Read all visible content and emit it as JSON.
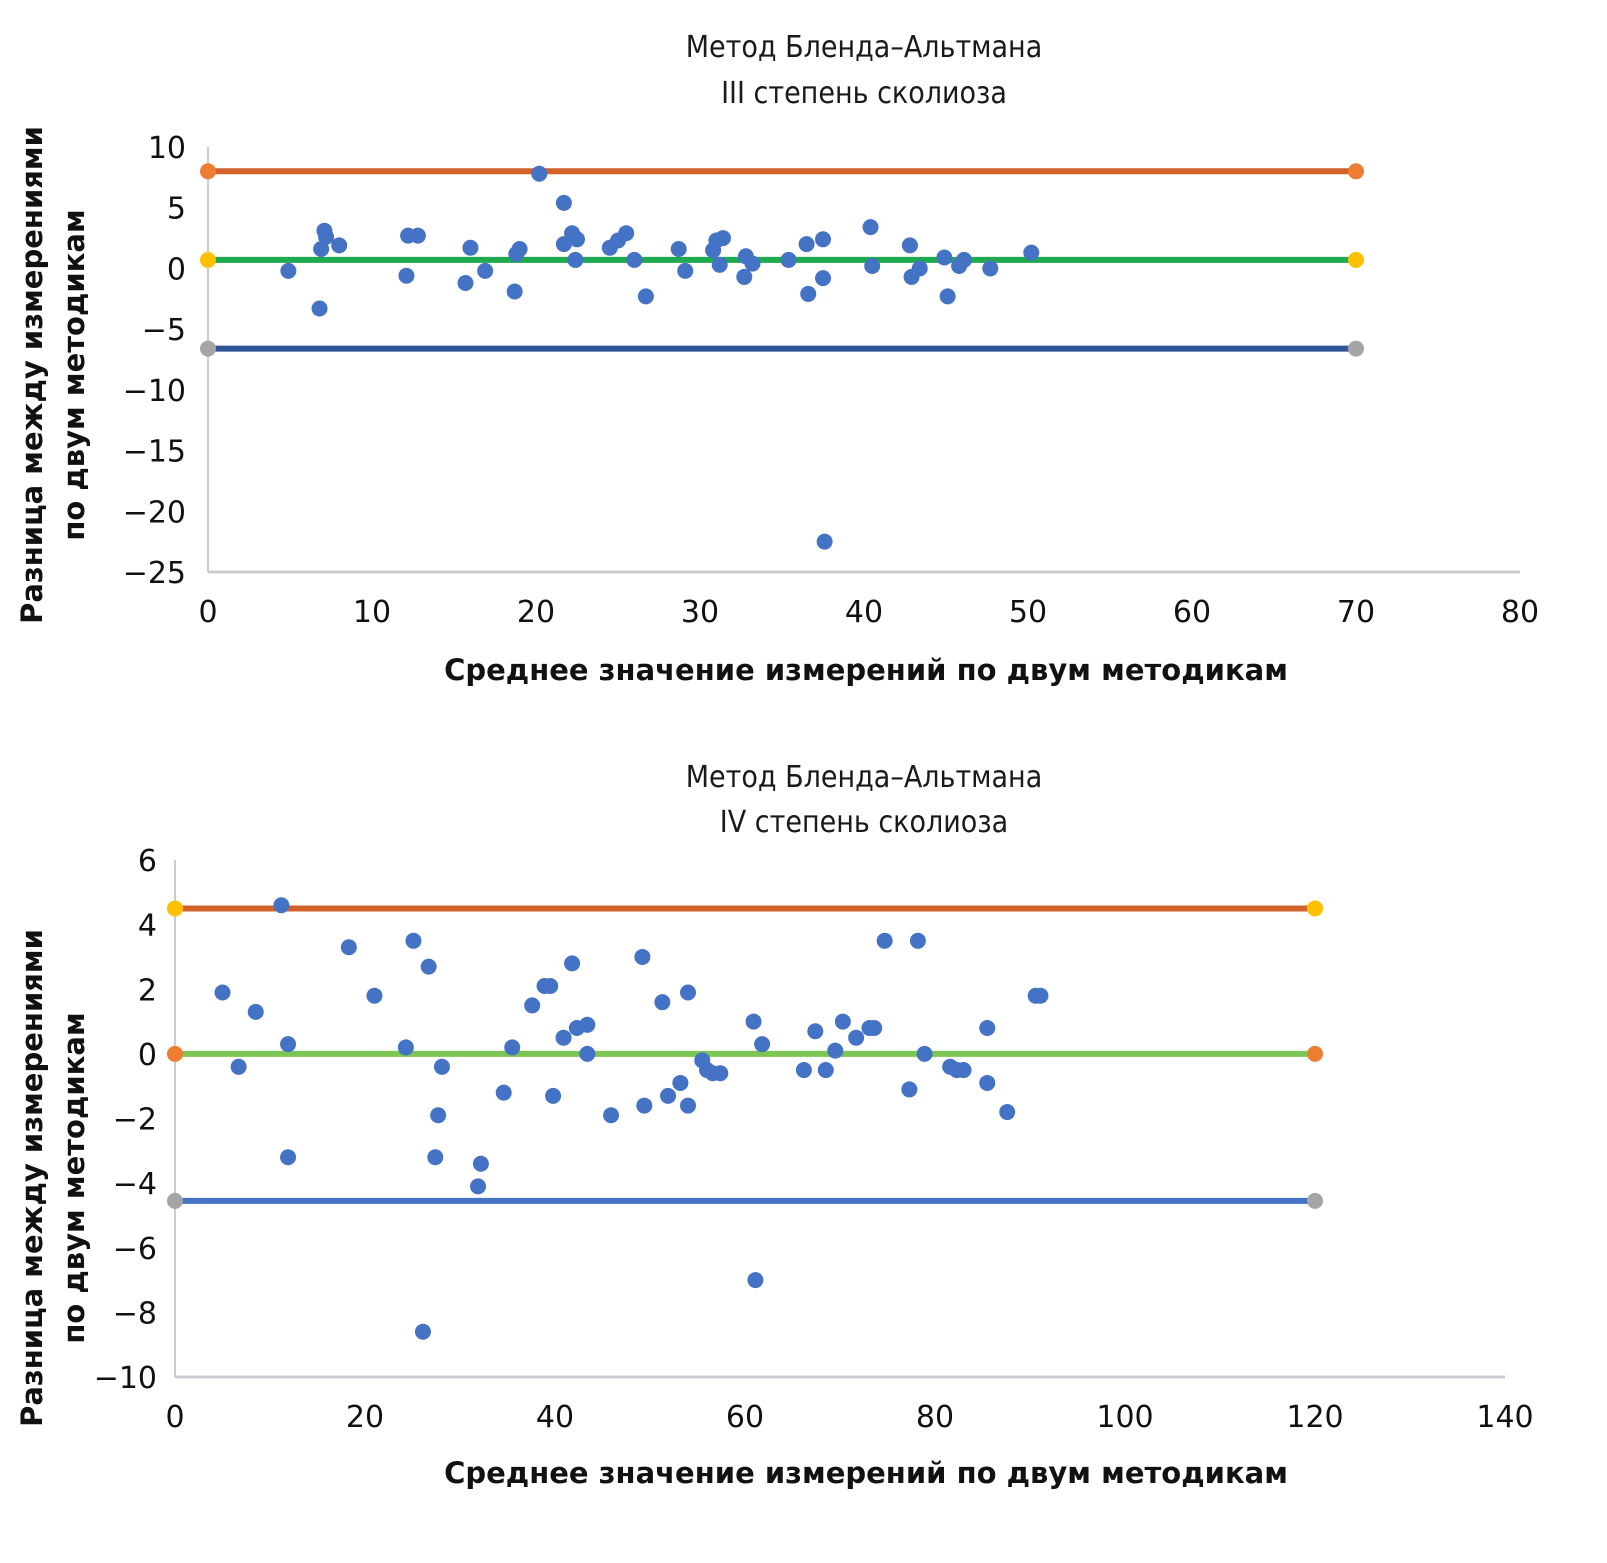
{
  "chart_data": [
    {
      "type": "scatter",
      "title": "Метод Бленда–Альтмана",
      "subtitle": "III степень сколиоза",
      "xlabel": "Среднее значение измерений по двум методикам",
      "ylabel_line1": "Разница между измерениями",
      "ylabel_line2": "по двум методикам",
      "xlim": [
        0,
        80
      ],
      "ylim": [
        -25,
        10
      ],
      "xticks": [
        0,
        10,
        20,
        30,
        40,
        50,
        60,
        70,
        80
      ],
      "yticks": [
        10,
        5,
        0,
        -5,
        -10,
        -15,
        -20,
        -25
      ],
      "ytick_labels": [
        "10",
        "5",
        "0",
        "−5",
        "−10",
        "−15",
        "−20",
        "−25"
      ],
      "grid": false,
      "reference_lines": [
        {
          "name": "upper limit",
          "y": 8.0,
          "x_range": [
            0,
            70
          ],
          "color": "#D2622A",
          "end_color": "#ED7D31"
        },
        {
          "name": "mean difference",
          "y": 0.7,
          "x_range": [
            0,
            70
          ],
          "color": "#1EAA4E",
          "end_color": "#FFC000"
        },
        {
          "name": "lower limit",
          "y": -6.6,
          "x_range": [
            0,
            70
          ],
          "color": "#2F5597",
          "end_color": "#A5A5A5"
        }
      ],
      "point_color": "#4472C4",
      "points": [
        [
          4.9,
          -0.2
        ],
        [
          6.8,
          -3.3
        ],
        [
          6.9,
          1.6
        ],
        [
          7.1,
          3.1
        ],
        [
          7.2,
          2.6
        ],
        [
          8.0,
          1.9
        ],
        [
          12.1,
          -0.6
        ],
        [
          12.2,
          2.7
        ],
        [
          12.8,
          2.7
        ],
        [
          15.7,
          -1.2
        ],
        [
          16.0,
          1.7
        ],
        [
          16.9,
          -0.2
        ],
        [
          18.7,
          -1.9
        ],
        [
          18.8,
          1.2
        ],
        [
          19.0,
          1.6
        ],
        [
          20.2,
          7.8
        ],
        [
          21.7,
          5.4
        ],
        [
          21.7,
          2.0
        ],
        [
          22.2,
          2.9
        ],
        [
          22.5,
          2.4
        ],
        [
          22.4,
          0.7
        ],
        [
          24.5,
          1.7
        ],
        [
          25.0,
          2.3
        ],
        [
          25.5,
          2.9
        ],
        [
          26.0,
          0.7
        ],
        [
          26.7,
          -2.3
        ],
        [
          28.7,
          1.6
        ],
        [
          29.1,
          -0.2
        ],
        [
          30.8,
          1.5
        ],
        [
          31.0,
          2.3
        ],
        [
          31.2,
          0.3
        ],
        [
          31.4,
          2.5
        ],
        [
          32.7,
          -0.7
        ],
        [
          32.8,
          1.0
        ],
        [
          33.2,
          0.4
        ],
        [
          35.4,
          0.7
        ],
        [
          36.6,
          -2.1
        ],
        [
          36.5,
          2.0
        ],
        [
          37.5,
          2.4
        ],
        [
          37.5,
          -0.8
        ],
        [
          37.6,
          -22.5
        ],
        [
          40.4,
          3.4
        ],
        [
          40.5,
          0.2
        ],
        [
          42.8,
          1.9
        ],
        [
          42.9,
          -0.7
        ],
        [
          43.4,
          -0.0
        ],
        [
          44.9,
          0.9
        ],
        [
          45.1,
          -2.3
        ],
        [
          45.8,
          0.2
        ],
        [
          46.1,
          0.7
        ],
        [
          47.7,
          -0.0
        ],
        [
          50.2,
          1.3
        ]
      ]
    },
    {
      "type": "scatter",
      "title": "Метод Бленда–Альтмана",
      "subtitle": "IV степень сколиоза",
      "xlabel": "Среднее значение измерений по двум методикам",
      "ylabel_line1": "Разница между измерениями",
      "ylabel_line2": "по двум методикам",
      "xlim": [
        0,
        140
      ],
      "ylim": [
        -10,
        6
      ],
      "xticks": [
        0,
        20,
        40,
        60,
        80,
        100,
        120,
        140
      ],
      "yticks": [
        6,
        4,
        2,
        0,
        -2,
        -4,
        -6,
        -8,
        -10
      ],
      "ytick_labels": [
        "6",
        "4",
        "2",
        "0",
        "−2",
        "−4",
        "−6",
        "−8",
        "−10"
      ],
      "grid": false,
      "reference_lines": [
        {
          "name": "upper limit",
          "y": 4.5,
          "x_range": [
            0,
            120
          ],
          "color": "#D2622A",
          "end_color": "#FFC000"
        },
        {
          "name": "mean difference",
          "y": 0.0,
          "x_range": [
            0,
            120
          ],
          "color": "#7CC653",
          "end_color": "#ED7D31"
        },
        {
          "name": "lower limit",
          "y": -4.55,
          "x_range": [
            0,
            120
          ],
          "color": "#4472C4",
          "end_color": "#A5A5A5"
        }
      ],
      "point_color": "#4472C4",
      "points": [
        [
          5.0,
          1.9
        ],
        [
          6.7,
          -0.4
        ],
        [
          8.5,
          1.3
        ],
        [
          11.2,
          4.6
        ],
        [
          11.9,
          0.3
        ],
        [
          11.9,
          -3.2
        ],
        [
          18.3,
          3.3
        ],
        [
          21.0,
          1.8
        ],
        [
          24.3,
          0.2
        ],
        [
          25.1,
          3.5
        ],
        [
          26.1,
          -8.6
        ],
        [
          26.7,
          2.7
        ],
        [
          27.4,
          -3.2
        ],
        [
          27.7,
          -1.9
        ],
        [
          28.1,
          -0.4
        ],
        [
          31.9,
          -4.1
        ],
        [
          32.2,
          -3.4
        ],
        [
          34.6,
          -1.2
        ],
        [
          35.5,
          0.2
        ],
        [
          37.6,
          1.5
        ],
        [
          38.9,
          2.1
        ],
        [
          39.5,
          2.1
        ],
        [
          39.8,
          -1.3
        ],
        [
          40.9,
          0.5
        ],
        [
          41.8,
          2.8
        ],
        [
          42.3,
          0.8
        ],
        [
          43.4,
          0.9
        ],
        [
          43.4,
          0.0
        ],
        [
          45.9,
          -1.9
        ],
        [
          49.2,
          3.0
        ],
        [
          49.4,
          -1.6
        ],
        [
          51.3,
          1.6
        ],
        [
          51.9,
          -1.3
        ],
        [
          53.2,
          -0.9
        ],
        [
          54.0,
          1.9
        ],
        [
          54.0,
          -1.6
        ],
        [
          55.5,
          -0.2
        ],
        [
          56.0,
          -0.5
        ],
        [
          56.6,
          -0.6
        ],
        [
          57.4,
          -0.6
        ],
        [
          60.9,
          1.0
        ],
        [
          61.1,
          -7.0
        ],
        [
          61.8,
          0.3
        ],
        [
          66.2,
          -0.5
        ],
        [
          67.4,
          0.7
        ],
        [
          68.5,
          -0.5
        ],
        [
          69.5,
          0.1
        ],
        [
          70.3,
          1.0
        ],
        [
          71.7,
          0.5
        ],
        [
          73.1,
          0.8
        ],
        [
          73.6,
          0.8
        ],
        [
          74.7,
          3.5
        ],
        [
          77.3,
          -1.1
        ],
        [
          78.2,
          3.5
        ],
        [
          78.9,
          0.0
        ],
        [
          81.6,
          -0.4
        ],
        [
          82.3,
          -0.5
        ],
        [
          83.0,
          -0.5
        ],
        [
          85.5,
          0.8
        ],
        [
          85.5,
          -0.9
        ],
        [
          87.6,
          -1.8
        ],
        [
          90.6,
          1.8
        ],
        [
          91.1,
          1.8
        ]
      ]
    }
  ]
}
